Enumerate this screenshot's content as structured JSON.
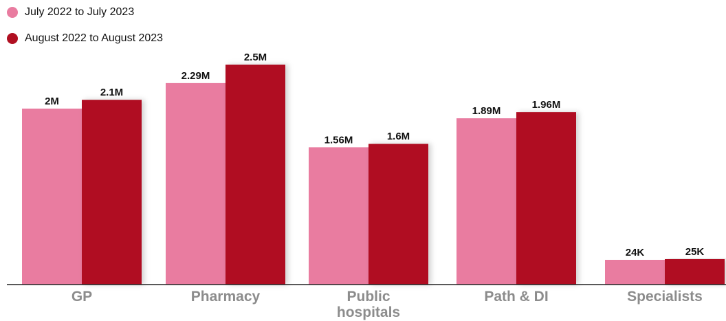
{
  "legend": [
    {
      "label": "July 2022 to July 2023",
      "color": "#e97ca0"
    },
    {
      "label": "August 2022 to August 2023",
      "color": "#b00f21"
    }
  ],
  "chart_data": {
    "type": "bar",
    "categories": [
      "GP",
      "Pharmacy",
      "Public hospitals",
      "Path & DI",
      "Specialists"
    ],
    "series": [
      {
        "name": "July 2022 to July 2023",
        "color": "#e97ca0",
        "values": [
          2000000,
          2290000,
          1560000,
          1890000,
          24000
        ],
        "labels": [
          "2M",
          "2.29M",
          "1.56M",
          "1.89M",
          "24K"
        ]
      },
      {
        "name": "August 2022 to August 2023",
        "color": "#b00f21",
        "values": [
          2100000,
          2500000,
          1600000,
          1960000,
          25000
        ],
        "labels": [
          "2.1M",
          "2.5M",
          "1.6M",
          "1.96M",
          "25K"
        ]
      }
    ],
    "note": "Specialists bars are drawn on a visually separate (non-proportional) scale in the original",
    "grid": false,
    "legend_position": "top-left"
  }
}
